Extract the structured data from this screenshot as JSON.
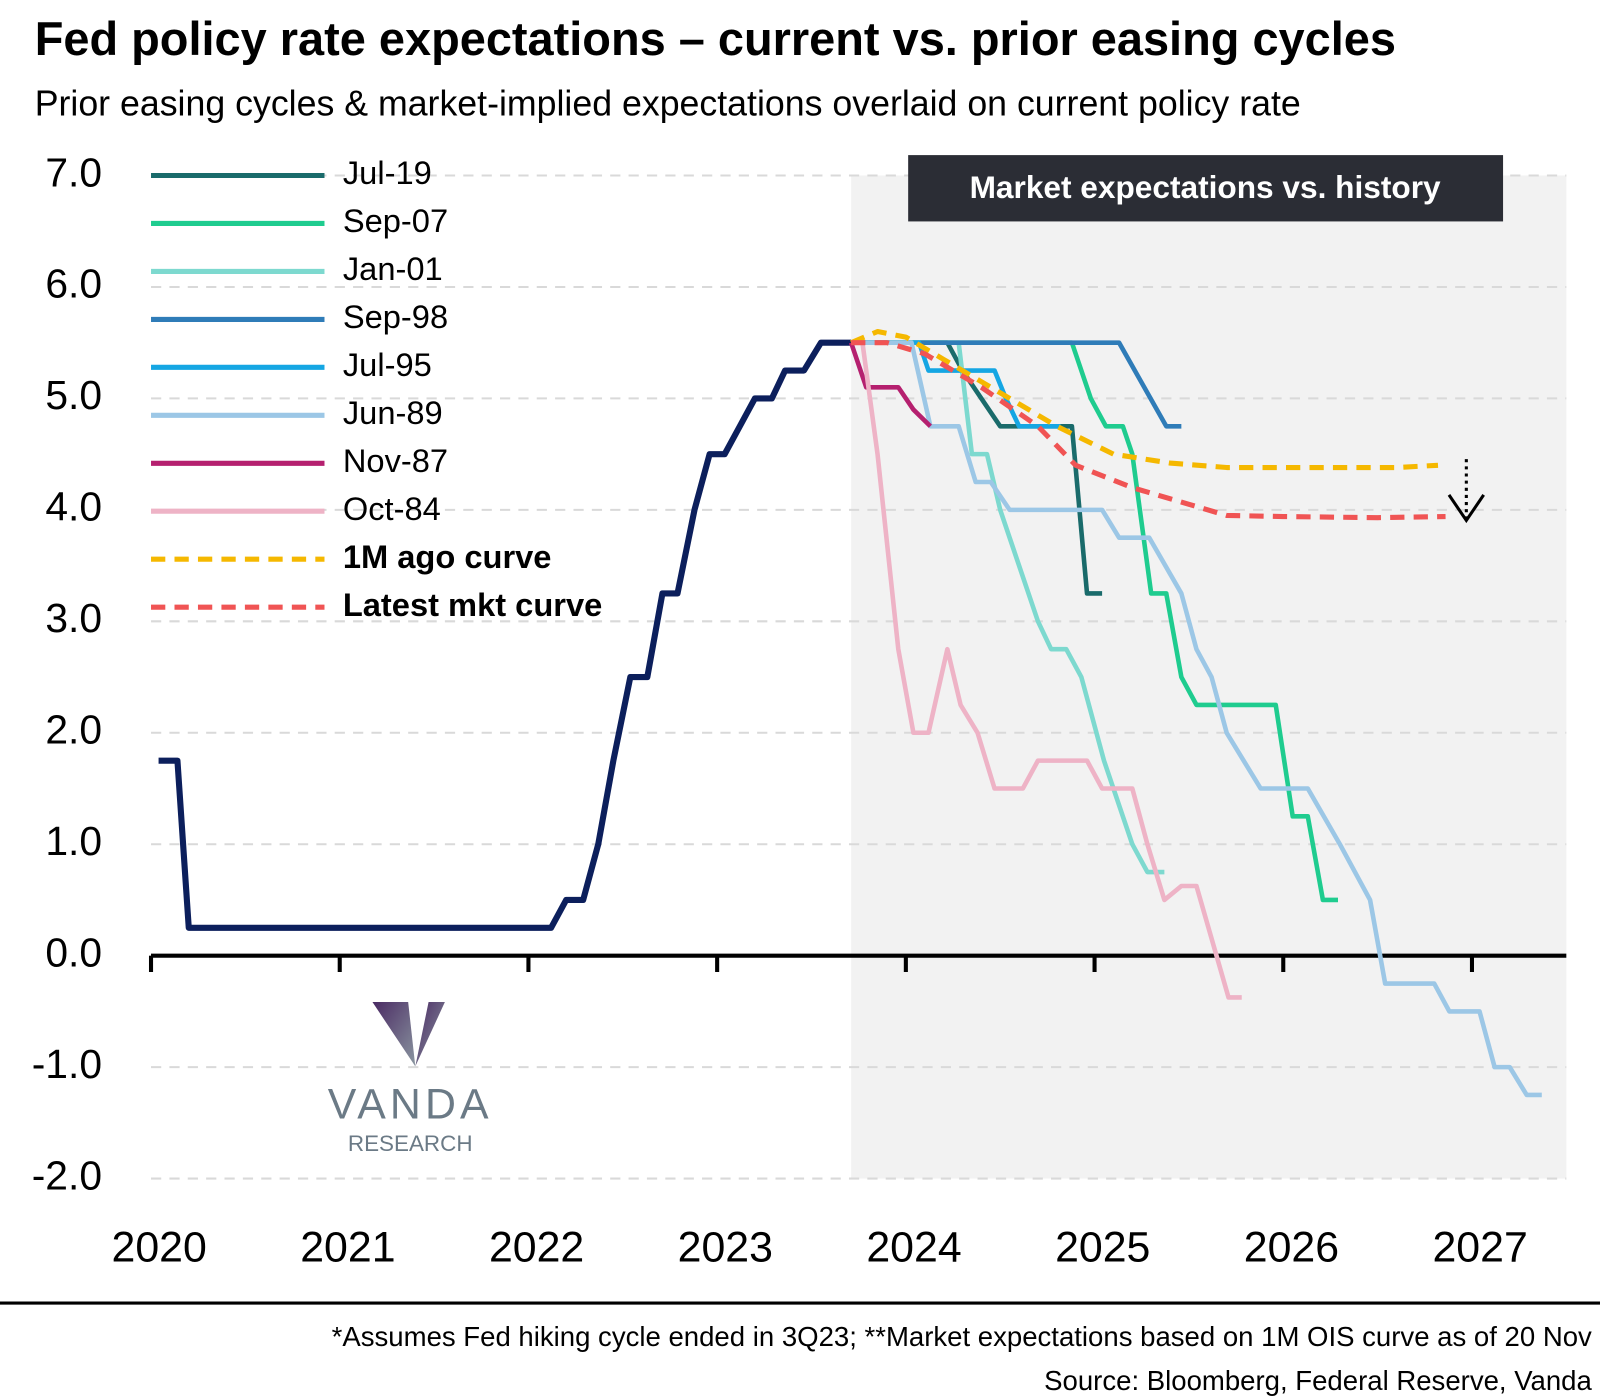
{
  "chart_data": {
    "type": "line",
    "title": "Fed policy rate expectations – current vs. prior easing cycles",
    "subtitle": "Prior easing cycles & market-implied expectations overlaid on current policy rate",
    "annotation": "Market expectations vs. history",
    "footnote": "*Assumes Fed hiking cycle ended in 3Q23; **Market expectations based on 1M OIS curve as of 20 Nov",
    "source": "Source: Bloomberg, Federal Reserve, Vanda",
    "logo": {
      "name": "VANDA",
      "sub": "RESEARCH"
    },
    "xlim": [
      2020,
      2027.5
    ],
    "xticks": [
      2020,
      2021,
      2022,
      2023,
      2024,
      2025,
      2026,
      2027
    ],
    "ylim": [
      -2,
      7
    ],
    "yticks": [
      {
        "value": -2,
        "label": "-2.0"
      },
      {
        "value": -1,
        "label": "-1.0"
      },
      {
        "value": 0,
        "label": "0.0"
      },
      {
        "value": 1,
        "label": "1.0"
      },
      {
        "value": 2,
        "label": "2.0"
      },
      {
        "value": 3,
        "label": "3.0"
      },
      {
        "value": 4,
        "label": "4.0"
      },
      {
        "value": 5,
        "label": "5.0"
      },
      {
        "value": 6,
        "label": "6.0"
      },
      {
        "value": 7,
        "label": "7.0"
      }
    ],
    "grid": true,
    "legend": "top-left",
    "shaded_from": 2023.71,
    "policy_rate": {
      "color": "#0c1f5c",
      "x": [
        2020.04,
        2020.14,
        2020.2,
        2022.12,
        2022.2,
        2022.29,
        2022.37,
        2022.45,
        2022.54,
        2022.63,
        2022.71,
        2022.79,
        2022.88,
        2022.96,
        2023.04,
        2023.12,
        2023.2,
        2023.29,
        2023.36,
        2023.46,
        2023.55,
        2023.71
      ],
      "values": [
        1.75,
        1.75,
        0.25,
        0.25,
        0.5,
        0.5,
        1.0,
        1.75,
        2.5,
        2.5,
        3.25,
        3.25,
        4.0,
        4.5,
        4.5,
        4.75,
        5.0,
        5.0,
        5.25,
        5.25,
        5.5,
        5.5
      ]
    },
    "series": [
      {
        "name": "Jul-19",
        "color": "#1a6b6b",
        "x": [
          2023.71,
          2024.22,
          2024.3,
          2024.4,
          2024.5,
          2024.88,
          2024.96,
          2025.04
        ],
        "values": [
          5.5,
          5.5,
          5.25,
          5.0,
          4.75,
          4.75,
          3.25,
          3.25
        ]
      },
      {
        "name": "Sep-07",
        "color": "#1fcc8f",
        "x": [
          2023.71,
          2024.88,
          2024.98,
          2025.06,
          2025.15,
          2025.2,
          2025.3,
          2025.38,
          2025.46,
          2025.54,
          2025.96,
          2026.05,
          2026.13,
          2026.21,
          2026.29
        ],
        "values": [
          5.5,
          5.5,
          5.0,
          4.75,
          4.75,
          4.5,
          3.25,
          3.25,
          2.5,
          2.25,
          2.25,
          1.25,
          1.25,
          0.5,
          0.5
        ]
      },
      {
        "name": "Jan-01",
        "color": "#7dd9cf",
        "x": [
          2023.71,
          2024.28,
          2024.35,
          2024.43,
          2024.5,
          2024.6,
          2024.7,
          2024.77,
          2024.85,
          2024.93,
          2025.05,
          2025.2,
          2025.28,
          2025.37
        ],
        "values": [
          5.5,
          5.5,
          4.5,
          4.5,
          4.0,
          3.5,
          3.0,
          2.75,
          2.75,
          2.5,
          1.75,
          1.0,
          0.75,
          0.75
        ]
      },
      {
        "name": "Sep-98",
        "color": "#2f7cb8",
        "x": [
          2023.71,
          2025.13,
          2025.38,
          2025.46
        ],
        "values": [
          5.5,
          5.5,
          4.75,
          4.75
        ]
      },
      {
        "name": "Jul-95",
        "color": "#15a6e3",
        "x": [
          2023.71,
          2024.07,
          2024.12,
          2024.47,
          2024.53,
          2024.6,
          2024.82
        ],
        "values": [
          5.5,
          5.5,
          5.25,
          5.25,
          5.0,
          4.75,
          4.75
        ]
      },
      {
        "name": "Jun-89",
        "color": "#9cc7e6",
        "x": [
          2023.71,
          2024.03,
          2024.13,
          2024.28,
          2024.37,
          2024.45,
          2024.55,
          2025.04,
          2025.13,
          2025.29,
          2025.46,
          2025.54,
          2025.62,
          2025.7,
          2025.88,
          2026.13,
          2026.3,
          2026.46,
          2026.54,
          2026.8,
          2026.88,
          2027.04,
          2027.12,
          2027.2,
          2027.29,
          2027.37
        ],
        "values": [
          5.5,
          5.5,
          4.75,
          4.75,
          4.25,
          4.25,
          4.0,
          4.0,
          3.75,
          3.75,
          3.25,
          2.75,
          2.5,
          2.0,
          1.5,
          1.5,
          1.0,
          0.5,
          -0.25,
          -0.25,
          -0.5,
          -0.5,
          -1.0,
          -1.0,
          -1.25,
          -1.25
        ]
      },
      {
        "name": "Nov-87",
        "color": "#b5206f",
        "x": [
          2023.71,
          2023.79,
          2023.96,
          2024.04,
          2024.13
        ],
        "values": [
          5.5,
          5.1,
          5.1,
          4.9,
          4.75
        ]
      },
      {
        "name": "Oct-84",
        "color": "#eeb3c6",
        "x": [
          2023.77,
          2023.85,
          2023.96,
          2024.04,
          2024.12,
          2024.22,
          2024.29,
          2024.38,
          2024.47,
          2024.62,
          2024.7,
          2024.96,
          2025.04,
          2025.2,
          2025.28,
          2025.37,
          2025.46,
          2025.54,
          2025.71,
          2025.78
        ],
        "values": [
          5.5,
          4.5,
          2.75,
          2.0,
          2.0,
          2.75,
          2.25,
          2.0,
          1.5,
          1.5,
          1.75,
          1.75,
          1.5,
          1.5,
          1.0,
          0.5,
          0.625,
          0.625,
          -0.375,
          -0.375
        ]
      },
      {
        "name": "1M ago curve",
        "color": "#f5b800",
        "dashed": true,
        "x": [
          2023.71,
          2023.85,
          2024.0,
          2024.2,
          2024.5,
          2024.8,
          2025.1,
          2025.4,
          2025.7,
          2026.0,
          2026.3,
          2026.6,
          2026.82
        ],
        "values": [
          5.5,
          5.6,
          5.55,
          5.35,
          5.05,
          4.75,
          4.5,
          4.42,
          4.38,
          4.38,
          4.38,
          4.38,
          4.4
        ]
      },
      {
        "name": "Latest mkt curve",
        "color": "#f05454",
        "dashed": true,
        "x": [
          2023.71,
          2023.9,
          2024.1,
          2024.4,
          2024.7,
          2024.9,
          2025.2,
          2025.5,
          2025.7,
          2026.0,
          2026.5,
          2026.86
        ],
        "values": [
          5.5,
          5.5,
          5.4,
          5.1,
          4.75,
          4.4,
          4.2,
          4.05,
          3.95,
          3.94,
          3.93,
          3.94
        ]
      }
    ]
  }
}
